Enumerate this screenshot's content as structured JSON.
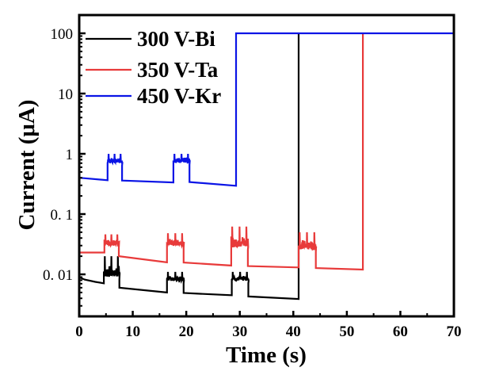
{
  "chart_data": {
    "type": "line",
    "title": "",
    "xlabel": "Time (s)",
    "ylabel": "Current (μA)",
    "xlim": [
      0,
      70
    ],
    "ylim": [
      0.002,
      200
    ],
    "yscale": "log",
    "grid": false,
    "legend_position": "top-left",
    "x_ticks": [
      0,
      10,
      20,
      30,
      40,
      50,
      60,
      70
    ],
    "x_tick_labels": [
      "0",
      "10",
      "20",
      "30",
      "40",
      "50",
      "60",
      "70"
    ],
    "y_ticks": [
      0.01,
      0.1,
      1,
      10,
      100
    ],
    "y_tick_labels": [
      "0. 01",
      "0. 1",
      "1",
      "10",
      "100"
    ],
    "series": [
      {
        "name": "300 V-Bi",
        "color": "#000000",
        "baseline": [
          [
            0,
            0.009
          ],
          [
            1,
            0.0082
          ],
          [
            3,
            0.0075
          ],
          [
            4.6,
            0.0071
          ]
        ],
        "pulses": [
          {
            "start": 4.6,
            "end": 7.5,
            "low": 0.009,
            "high": 0.02
          },
          {
            "start": 16.4,
            "end": 19.5,
            "low": 0.0078,
            "high": 0.011
          },
          {
            "start": 28.5,
            "end": 31.6,
            "low": 0.0078,
            "high": 0.011
          }
        ],
        "segments": [
          [
            7.5,
            0.006,
            16.4,
            0.005
          ],
          [
            19.5,
            0.0049,
            28.5,
            0.0045
          ],
          [
            31.6,
            0.0043,
            41.0,
            0.0039
          ]
        ],
        "jump": {
          "t": 41.0,
          "to": 100
        },
        "end_t": 41.0
      },
      {
        "name": "350 V-Ta",
        "color": "#e83a3a",
        "baseline": [
          [
            0,
            0.023
          ],
          [
            4.7,
            0.023
          ]
        ],
        "pulses": [
          {
            "start": 4.7,
            "end": 7.4,
            "low": 0.03,
            "high": 0.046
          },
          {
            "start": 16.4,
            "end": 19.5,
            "low": 0.03,
            "high": 0.048
          },
          {
            "start": 28.4,
            "end": 31.5,
            "low": 0.028,
            "high": 0.062
          },
          {
            "start": 41.0,
            "end": 44.2,
            "low": 0.026,
            "high": 0.05
          }
        ],
        "segments": [
          [
            7.4,
            0.02,
            16.4,
            0.0158
          ],
          [
            19.5,
            0.0157,
            28.4,
            0.014
          ],
          [
            31.5,
            0.0137,
            41.0,
            0.013
          ],
          [
            44.2,
            0.0127,
            53.0,
            0.012
          ]
        ],
        "jump": {
          "t": 53.0,
          "to": 100
        },
        "end_t": 53.0
      },
      {
        "name": "450 V-Kr",
        "color": "#0a14e6",
        "baseline": [
          [
            0,
            0.4
          ],
          [
            5.3,
            0.365
          ]
        ],
        "pulses": [
          {
            "start": 5.3,
            "end": 8.0,
            "low": 0.7,
            "high": 1.0
          },
          {
            "start": 17.6,
            "end": 20.6,
            "low": 0.72,
            "high": 1.0
          }
        ],
        "segments": [
          [
            8.0,
            0.36,
            17.6,
            0.335
          ],
          [
            20.6,
            0.34,
            29.3,
            0.295
          ]
        ],
        "jump": {
          "t": 29.3,
          "to": 100
        },
        "end_t": 70
      }
    ]
  }
}
